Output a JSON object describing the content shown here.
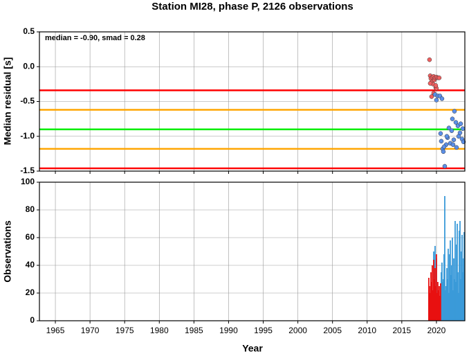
{
  "chart_data": [
    {
      "type": "scatter",
      "title": "Station MI28, phase P, 2126 observations",
      "annotation": "median = -0.90, smad = 0.28",
      "ylabel": "Median residual [s]",
      "xlim": [
        1962.7,
        2024.1
      ],
      "xticks": [
        1965,
        1970,
        1975,
        1980,
        1985,
        1990,
        1995,
        2000,
        2005,
        2010,
        2015,
        2020
      ],
      "ylim": [
        -1.5,
        0.5
      ],
      "yticks": [
        0.5,
        {
          "value": 0,
          "label": "0.0"
        },
        -0.5,
        {
          "value": -1,
          "label": "-1.0"
        },
        -1.5
      ],
      "grid": true,
      "hlines": [
        {
          "value": -0.34,
          "color": "#ff0000"
        },
        {
          "value": -0.62,
          "color": "#ffa500"
        },
        {
          "value": -0.9,
          "color": "#00ee00"
        },
        {
          "value": -1.18,
          "color": "#ffa500"
        },
        {
          "value": -1.46,
          "color": "#ff0000"
        }
      ],
      "series": [
        {
          "color": "#f06060",
          "x": [
            2019.0,
            2019.1,
            2019.2,
            2019.3,
            2019.4,
            2019.5,
            2019.6,
            2019.7,
            2019.8,
            2019.9,
            2020.0,
            2020.2,
            2019.1,
            2019.3,
            2019.6,
            2020.0,
            2020.4,
            2019.9
          ],
          "values": [
            0.1,
            -0.13,
            -0.17,
            -0.22,
            -0.15,
            -0.25,
            -0.14,
            -0.19,
            -0.16,
            -0.3,
            -0.15,
            -0.16,
            -0.24,
            -0.43,
            -0.38,
            -0.31,
            -0.16,
            -0.27
          ]
        },
        {
          "color": "#5b8fe8",
          "x": [
            2019.8,
            2020.0,
            2020.2,
            2020.5,
            2020.8,
            2020.6,
            2020.7,
            2020.9,
            2021.0,
            2021.2,
            2021.4,
            2021.6,
            2021.8,
            2022.0,
            2022.2,
            2022.3,
            2022.5,
            2022.6,
            2022.8,
            2022.9,
            2023.1,
            2023.2,
            2023.4,
            2023.5,
            2023.7,
            2023.8,
            2023.9,
            2021.1,
            2021.5,
            2022.4
          ],
          "values": [
            -0.4,
            -0.48,
            -0.42,
            -0.42,
            -0.46,
            -0.96,
            -1.07,
            -1.18,
            -1.22,
            -1.43,
            -1.12,
            -1.02,
            -0.88,
            -1.1,
            -0.92,
            -0.75,
            -1.05,
            -0.64,
            -0.8,
            -1.16,
            -0.85,
            -1.0,
            -0.95,
            -0.82,
            -1.04,
            -0.89,
            -1.08,
            -1.15,
            -1.0,
            -1.12
          ]
        }
      ]
    },
    {
      "type": "bar",
      "xlabel": "Year",
      "ylabel": "Observations",
      "xlim": [
        1962.7,
        2024.1
      ],
      "xticks": [
        1965,
        1970,
        1975,
        1980,
        1985,
        1990,
        1995,
        2000,
        2005,
        2010,
        2015,
        2020
      ],
      "ylim": [
        0,
        100
      ],
      "yticks": [
        0,
        20,
        40,
        60,
        80,
        100
      ],
      "grid": true,
      "series": [
        {
          "color": "#3a9ad9",
          "x": [
            2019.6,
            2019.8,
            2020.0,
            2020.7,
            2020.8,
            2020.9,
            2021.0,
            2021.1,
            2021.2,
            2021.3,
            2021.4,
            2021.5,
            2021.6,
            2021.7,
            2021.8,
            2021.9,
            2022.0,
            2022.1,
            2022.2,
            2022.3,
            2022.4,
            2022.5,
            2022.6,
            2022.7,
            2022.8,
            2022.9,
            2023.0,
            2023.1,
            2023.2,
            2023.3,
            2023.4,
            2023.5,
            2023.6,
            2023.7,
            2023.8,
            2023.9,
            2024.0
          ],
          "values": [
            50,
            54,
            45,
            35,
            42,
            28,
            30,
            48,
            90,
            22,
            25,
            38,
            30,
            52,
            20,
            48,
            58,
            33,
            40,
            60,
            22,
            45,
            30,
            72,
            28,
            55,
            70,
            35,
            20,
            65,
            72,
            30,
            50,
            62,
            35,
            45,
            64
          ]
        },
        {
          "color": "#e81010",
          "x": [
            2018.9,
            2019.0,
            2019.1,
            2019.2,
            2019.3,
            2019.4,
            2019.5,
            2019.6,
            2019.7,
            2019.8,
            2019.9,
            2020.0,
            2020.1,
            2020.2,
            2020.3,
            2020.4,
            2020.5,
            2020.6
          ],
          "values": [
            31,
            25,
            20,
            35,
            28,
            40,
            22,
            44,
            30,
            38,
            25,
            48,
            20,
            28,
            22,
            25,
            18,
            27
          ]
        }
      ]
    }
  ]
}
